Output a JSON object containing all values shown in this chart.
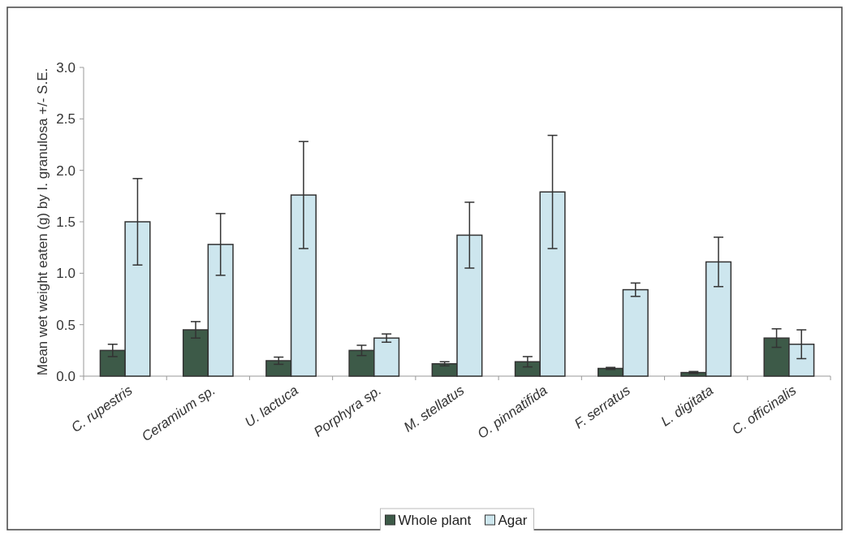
{
  "chart_data": {
    "type": "bar",
    "ylabel": "Mean wet weight eaten (g) by I. granulosa +/- S.E.",
    "categories": [
      "C. rupestris",
      "Ceramium sp.",
      "U. lactuca",
      "Porphyra sp.",
      "M. stellatus",
      "O. pinnatifida",
      "F. serratus",
      "L. digitata",
      "C. officinalis"
    ],
    "series": [
      {
        "name": "Whole plant",
        "color": "#3d5a48",
        "values": [
          0.25,
          0.45,
          0.15,
          0.25,
          0.12,
          0.14,
          0.075,
          0.035,
          0.37
        ],
        "errors": [
          0.06,
          0.08,
          0.035,
          0.05,
          0.02,
          0.05,
          0.01,
          0.01,
          0.09
        ]
      },
      {
        "name": "Agar",
        "color": "#cde6ee",
        "values": [
          1.5,
          1.28,
          1.76,
          0.37,
          1.37,
          1.79,
          0.84,
          1.11,
          0.31
        ],
        "errors": [
          0.42,
          0.3,
          0.52,
          0.04,
          0.32,
          0.55,
          0.065,
          0.24,
          0.14
        ]
      }
    ],
    "ylim": [
      0,
      3
    ],
    "yticks": [
      {
        "value": 0,
        "label": "0.0"
      },
      {
        "value": 0.5,
        "label": "0.5"
      },
      {
        "value": 1,
        "label": "1.0"
      },
      {
        "value": 1.5,
        "label": "1.5"
      },
      {
        "value": 2,
        "label": "2.0"
      },
      {
        "value": 2.5,
        "label": "2.5"
      },
      {
        "value": 3,
        "label": "3.0"
      }
    ],
    "legend": "bottom"
  }
}
